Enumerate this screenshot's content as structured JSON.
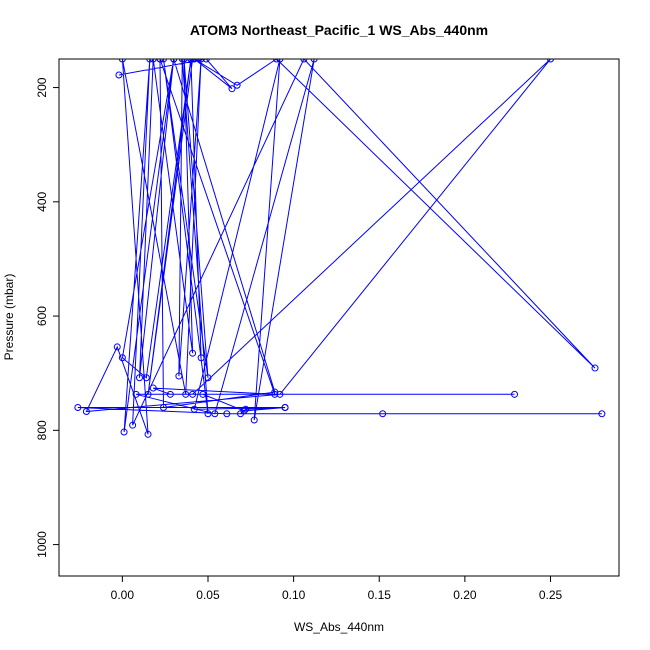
{
  "chart_data": {
    "type": "line",
    "title": "ATOM3 Northeast_Pacific_1 WS_Abs_440nm",
    "xlabel": "WS_Abs_440nm",
    "ylabel": "Pressure (mbar)",
    "xlim": [
      -0.037,
      0.29
    ],
    "ylim": [
      1055,
      150
    ],
    "y_reversed": true,
    "xticks": [
      0.0,
      0.05,
      0.1,
      0.15,
      0.2,
      0.25
    ],
    "xtick_labels": [
      "0.00",
      "0.05",
      "0.10",
      "0.15",
      "0.20",
      "0.25"
    ],
    "yticks": [
      200,
      400,
      600,
      800,
      1000
    ],
    "ytick_labels": [
      "200",
      "400",
      "600",
      "800",
      "1000"
    ],
    "grid": false,
    "series": [
      {
        "color": "#0000ff",
        "marker": "open-circle",
        "points": [
          [
            -0.002,
            178
          ],
          [
            0.049,
            150
          ],
          [
            0.064,
            202
          ],
          [
            0.042,
            150
          ],
          [
            0.067,
            196
          ],
          [
            0.09,
            150
          ],
          [
            0.276,
            691
          ],
          [
            0.106,
            150
          ],
          [
            0.006,
            791
          ],
          [
            0.016,
            150
          ],
          [
            0.001,
            803
          ],
          [
            0.03,
            150
          ],
          [
            0.0,
            673
          ],
          [
            0.014,
            708
          ],
          [
            0.04,
            150
          ],
          [
            0.046,
            673
          ],
          [
            0.04,
            150
          ],
          [
            0.015,
            737
          ],
          [
            0.041,
            150
          ],
          [
            0.022,
            150
          ],
          [
            0.024,
            760
          ],
          [
            0.089,
            733
          ],
          [
            0.03,
            150
          ],
          [
            0.01,
            708
          ],
          [
            0.018,
            150
          ],
          [
            0.041,
            665
          ],
          [
            0.036,
            150
          ],
          [
            0.05,
            708
          ],
          [
            0.024,
            150
          ],
          [
            0.05,
            771
          ],
          [
            0.035,
            150
          ],
          [
            0.033,
            705
          ],
          [
            0.046,
            150
          ],
          [
            0.037,
            737
          ],
          [
            0.0,
            150
          ],
          [
            0.015,
            807
          ],
          [
            -0.003,
            654
          ],
          [
            -0.021,
            767
          ],
          [
            0.092,
            737
          ],
          [
            0.25,
            150
          ],
          [
            0.041,
            737
          ],
          [
            0.229,
            737
          ],
          [
            0.008,
            737
          ],
          [
            0.054,
            771
          ],
          [
            0.112,
            150
          ],
          [
            0.077,
            782
          ],
          [
            0.092,
            150
          ],
          [
            0.042,
            763
          ],
          [
            0.095,
            760
          ],
          [
            0.072,
            763
          ],
          [
            0.069,
            771
          ],
          [
            0.28,
            771
          ],
          [
            0.152,
            771
          ],
          [
            0.061,
            771
          ],
          [
            -0.026,
            760
          ],
          [
            0.095,
            760
          ],
          [
            0.071,
            766
          ],
          [
            0.047,
            737
          ],
          [
            0.028,
            737
          ],
          [
            0.018,
            726
          ],
          [
            0.089,
            737
          ],
          [
            0.022,
            150
          ]
        ]
      }
    ]
  }
}
